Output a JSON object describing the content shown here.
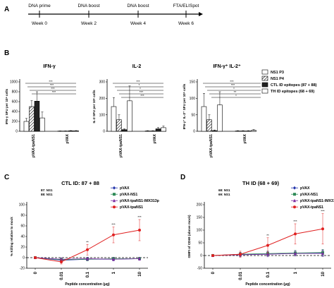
{
  "panelA": {
    "letter": "A",
    "events": [
      {
        "label": "DNA prime",
        "week": "Week 0"
      },
      {
        "label": "DNA boost",
        "week": "Week 2"
      },
      {
        "label": "DNA boost",
        "week": "Week 4"
      },
      {
        "label": "FTA/ELISpot",
        "week": "Week 6"
      }
    ]
  },
  "panelB": {
    "letter": "B",
    "legend": [
      "NS1 P3",
      "NS1 P4",
      "CTL ID epitopes (87 + 88)",
      "TH ID epitopes (68 + 69)"
    ],
    "colors": [
      "#ffffff",
      "#ffffff",
      "#222222",
      "#ffffff"
    ],
    "patterns": [
      "solid",
      "hatch",
      "solid",
      "open"
    ],
    "stars": "***"
  },
  "chart_data": [
    {
      "type": "bar",
      "title": "IFN-γ",
      "ylabel": "IFN-γ SFU per 10⁶ cells",
      "yticks": [
        "0",
        "200",
        "400",
        "600",
        "800",
        "1000"
      ],
      "ylim": [
        0,
        1000
      ],
      "categories": [
        "pVAX-tpaNS1",
        "pVAX"
      ],
      "series": [
        {
          "name": "NS1 P3",
          "values": [
            200,
            5
          ],
          "errors": [
            60,
            3
          ]
        },
        {
          "name": "NS1 P4",
          "values": [
            500,
            5
          ],
          "errors": [
            120,
            3
          ]
        },
        {
          "name": "CTL ID epitopes (87 + 88)",
          "values": [
            610,
            10
          ],
          "errors": [
            190,
            5
          ]
        },
        {
          "name": "TH ID epitopes (68 + 69)",
          "values": [
            270,
            10
          ],
          "errors": [
            120,
            5
          ]
        }
      ]
    },
    {
      "type": "bar",
      "title": "IL-2",
      "ylabel": "IL-2 SFU per 10⁶ cells",
      "yticks": [
        "0",
        "100",
        "200",
        "300"
      ],
      "ylim": [
        0,
        300
      ],
      "categories": [
        "pVAX-tpaNS1",
        "pVAX"
      ],
      "series": [
        {
          "name": "NS1 P3",
          "values": [
            150,
            2
          ],
          "errors": [
            55,
            2
          ]
        },
        {
          "name": "NS1 P4",
          "values": [
            70,
            2
          ],
          "errors": [
            30,
            2
          ]
        },
        {
          "name": "CTL ID epitopes (87 + 88)",
          "values": [
            10,
            15
          ],
          "errors": [
            5,
            8
          ]
        },
        {
          "name": "TH ID epitopes (68 + 69)",
          "values": [
            185,
            22
          ],
          "errors": [
            90,
            10
          ]
        }
      ],
      "stars": [
        "***",
        "*",
        "*",
        "***",
        "***"
      ]
    },
    {
      "type": "bar",
      "title": "IFN-γ⁺ IL-2⁺",
      "ylabel": "IFN-γ⁺ IL-2⁺ SFU per 10⁶ cells",
      "yticks": [
        "0",
        "50",
        "100",
        "150"
      ],
      "ylim": [
        0,
        150
      ],
      "categories": [
        "pVAX-tpaNS1",
        "pVAX"
      ],
      "series": [
        {
          "name": "NS1 P3",
          "values": [
            75,
            1
          ],
          "errors": [
            40,
            1
          ]
        },
        {
          "name": "NS1 P4",
          "values": [
            35,
            1
          ],
          "errors": [
            15,
            1
          ]
        },
        {
          "name": "CTL ID epitopes (87 + 88)",
          "values": [
            2,
            1
          ],
          "errors": [
            2,
            1
          ]
        },
        {
          "name": "TH ID epitopes (68 + 69)",
          "values": [
            80,
            3
          ],
          "errors": [
            40,
            2
          ]
        }
      ],
      "stars": [
        "***",
        "***",
        "*",
        "**",
        "*"
      ]
    },
    {
      "type": "line",
      "panel": "C",
      "title": "CTL ID: 87 + 88",
      "peptide_lines": [
        "87: NS1",
        "88: NS1"
      ],
      "ylabel": "% Killing relative to mock",
      "yticks": [
        "-20",
        "0",
        "20",
        "40",
        "60",
        "80",
        "100"
      ],
      "ylim": [
        -20,
        100
      ],
      "xlabel": "Peptide concentration (μg)",
      "x": [
        "0",
        "0.01",
        "0.1",
        "1",
        "10"
      ],
      "series": [
        {
          "name": "pVAX",
          "color": "#2233aa",
          "marker": "diamond",
          "values": [
            0,
            -5,
            -3,
            -3,
            -2
          ],
          "errors": [
            2,
            3,
            3,
            3,
            3
          ]
        },
        {
          "name": "pVAX-NS1",
          "color": "#2e8b57",
          "marker": "square",
          "values": [
            0,
            -4,
            -3,
            -2,
            -2
          ],
          "errors": [
            2,
            3,
            3,
            3,
            3
          ]
        },
        {
          "name": "pVAX-tpaNS1-IMX313p",
          "color": "#7a2aa0",
          "marker": "triangle",
          "values": [
            0,
            -3,
            -2,
            -3,
            -2
          ],
          "errors": [
            2,
            3,
            3,
            3,
            3
          ]
        },
        {
          "name": "pVAX-tpaNS1",
          "color": "#e02020",
          "marker": "circle",
          "values": [
            0,
            -8,
            15,
            43,
            52
          ],
          "errors": [
            2,
            4,
            10,
            15,
            20
          ]
        }
      ],
      "stars": [
        "**",
        "***",
        "***"
      ]
    },
    {
      "type": "line",
      "panel": "D",
      "title": "TH ID (68 + 69)",
      "peptide_lines": [
        "68: NS1",
        "69: NS1"
      ],
      "ylabel": "GMFI of CD69 (above mock)",
      "yticks": [
        "-50",
        "0",
        "50",
        "100",
        "150",
        "200"
      ],
      "ylim": [
        -50,
        200
      ],
      "xlabel": "Peptide concentration (μg)",
      "x": [
        "0",
        "0.01",
        "0.1",
        "1",
        "10"
      ],
      "series": [
        {
          "name": "pVAX",
          "color": "#2233aa",
          "marker": "diamond",
          "values": [
            0,
            5,
            5,
            10,
            10
          ],
          "errors": [
            3,
            8,
            10,
            10,
            12
          ]
        },
        {
          "name": "pVAX-NS1",
          "color": "#2e8b57",
          "marker": "square",
          "values": [
            0,
            5,
            8,
            10,
            12
          ],
          "errors": [
            3,
            8,
            10,
            10,
            12
          ]
        },
        {
          "name": "pVAX-tpaNS1-IMX313p",
          "color": "#7a2aa0",
          "marker": "triangle",
          "values": [
            0,
            3,
            5,
            8,
            8
          ],
          "errors": [
            3,
            8,
            10,
            10,
            12
          ]
        },
        {
          "name": "pVAX-tpaNS1",
          "color": "#e02020",
          "marker": "circle",
          "values": [
            0,
            5,
            40,
            85,
            105
          ],
          "errors": [
            3,
            12,
            30,
            40,
            60
          ]
        }
      ],
      "stars": [
        "**",
        "***",
        "***"
      ]
    }
  ],
  "panelC": {
    "letter": "C"
  },
  "panelD": {
    "letter": "D"
  }
}
